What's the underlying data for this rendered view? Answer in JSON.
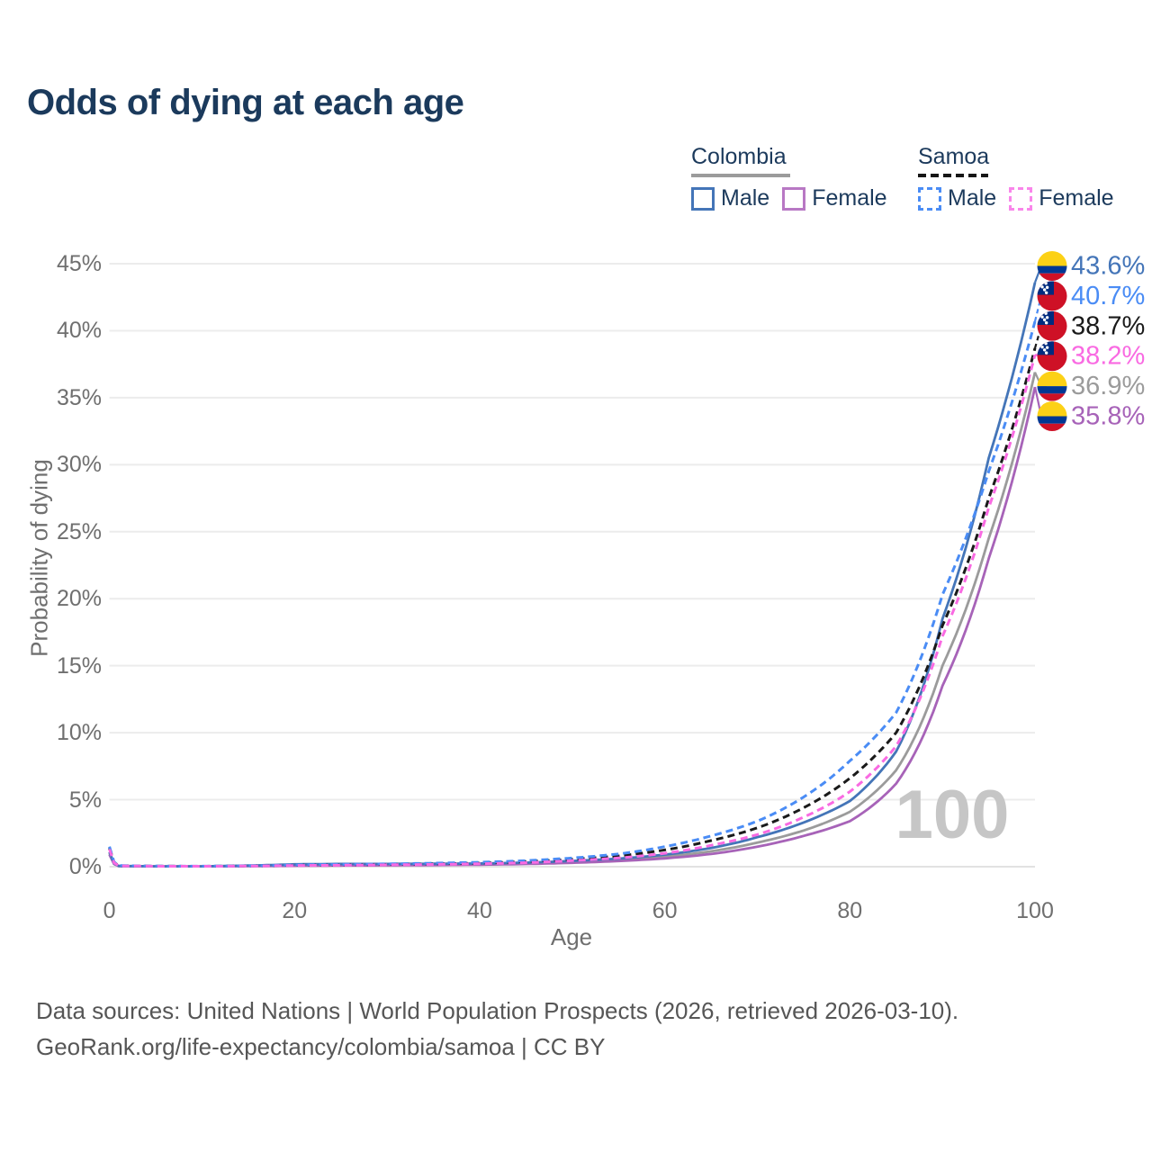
{
  "title": "Odds of dying at each age",
  "legend": {
    "groups": [
      {
        "name": "Colombia",
        "line_style": "solid",
        "underline_color": "#9b9b9b",
        "items": [
          {
            "label": "Male",
            "color": "#4475b8"
          },
          {
            "label": "Female",
            "color": "#b878c4"
          }
        ]
      },
      {
        "name": "Samoa",
        "line_style": "dashed",
        "underline_color": "#161616",
        "items": [
          {
            "label": "Male",
            "color": "#4a8cf5"
          },
          {
            "label": "Female",
            "color": "#f986ea"
          }
        ]
      }
    ]
  },
  "chart_data": {
    "type": "line",
    "title": "Odds of dying at each age",
    "xlabel": "Age",
    "ylabel": "Probability of dying",
    "xlim": [
      0,
      100
    ],
    "ylim": [
      0,
      45
    ],
    "x_ticks": [
      0,
      20,
      40,
      60,
      80,
      100
    ],
    "y_ticks": [
      0,
      5,
      10,
      15,
      20,
      25,
      30,
      35,
      40,
      45
    ],
    "y_tick_suffix": "%",
    "grid": "horizontal",
    "legend_position": "top-right",
    "watermark": "100",
    "ages": [
      0,
      1,
      5,
      10,
      15,
      20,
      25,
      30,
      35,
      40,
      45,
      50,
      55,
      60,
      65,
      70,
      75,
      80,
      85,
      90,
      95,
      100
    ],
    "series": [
      {
        "id": "colombia-combined",
        "name": "Colombia",
        "color": "#9b9b9b",
        "dash": "solid",
        "values": [
          1.0,
          0.05,
          0.028,
          0.026,
          0.07,
          0.13,
          0.15,
          0.16,
          0.17,
          0.19,
          0.25,
          0.36,
          0.5,
          0.75,
          1.15,
          1.8,
          2.7,
          4.1,
          7.2,
          15.0,
          24.5,
          36.9
        ]
      },
      {
        "id": "colombia-female",
        "name": "Colombia Female",
        "color": "#a763b8",
        "dash": "solid",
        "values": [
          0.9,
          0.045,
          0.025,
          0.024,
          0.04,
          0.07,
          0.09,
          0.1,
          0.12,
          0.15,
          0.2,
          0.29,
          0.42,
          0.62,
          0.95,
          1.5,
          2.3,
          3.4,
          6.2,
          13.5,
          23.0,
          35.8
        ]
      },
      {
        "id": "colombia-male",
        "name": "Colombia Male",
        "color": "#4475b8",
        "dash": "solid",
        "values": [
          1.1,
          0.055,
          0.03,
          0.03,
          0.09,
          0.18,
          0.21,
          0.21,
          0.22,
          0.24,
          0.3,
          0.43,
          0.6,
          0.9,
          1.4,
          2.2,
          3.3,
          4.9,
          8.6,
          18.5,
          30.5,
          43.6
        ]
      },
      {
        "id": "samoa-combined",
        "name": "Samoa",
        "color": "#1a1a1a",
        "dash": "dashed",
        "values": [
          1.4,
          0.075,
          0.04,
          0.035,
          0.06,
          0.11,
          0.14,
          0.17,
          0.21,
          0.27,
          0.38,
          0.55,
          0.8,
          1.25,
          1.95,
          2.9,
          4.4,
          6.6,
          10.0,
          18.0,
          27.5,
          38.7
        ]
      },
      {
        "id": "samoa-male",
        "name": "Samoa Male",
        "color": "#4a8cf5",
        "dash": "dashed",
        "values": [
          1.5,
          0.085,
          0.045,
          0.04,
          0.07,
          0.13,
          0.17,
          0.21,
          0.26,
          0.33,
          0.45,
          0.65,
          0.95,
          1.5,
          2.3,
          3.4,
          5.2,
          7.9,
          11.5,
          20.3,
          29.5,
          40.7
        ]
      },
      {
        "id": "samoa-female",
        "name": "Samoa Female",
        "color": "#f96ae2",
        "dash": "dashed",
        "values": [
          1.3,
          0.065,
          0.035,
          0.03,
          0.05,
          0.09,
          0.11,
          0.14,
          0.17,
          0.22,
          0.3,
          0.45,
          0.65,
          1.0,
          1.6,
          2.4,
          3.7,
          5.6,
          9.0,
          17.2,
          26.8,
          38.2
        ]
      }
    ],
    "end_labels": [
      {
        "series": "colombia-male",
        "value": "43.6%",
        "flag": "colombia",
        "color": "#4475b8"
      },
      {
        "series": "samoa-male",
        "value": "40.7%",
        "flag": "samoa",
        "color": "#4a8cf5"
      },
      {
        "series": "samoa-combined",
        "value": "38.7%",
        "flag": "samoa",
        "color": "#1a1a1a"
      },
      {
        "series": "samoa-female",
        "value": "38.2%",
        "flag": "samoa",
        "color": "#f96ae2"
      },
      {
        "series": "colombia-combined",
        "value": "36.9%",
        "flag": "colombia",
        "color": "#9b9b9b"
      },
      {
        "series": "colombia-female",
        "value": "35.8%",
        "flag": "colombia",
        "color": "#a763b8"
      }
    ]
  },
  "flags": {
    "colombia": {
      "yellow": "#FCD116",
      "blue": "#003893",
      "red": "#CE1126"
    },
    "samoa": {
      "red": "#CE1126",
      "blue": "#002B7F",
      "star": "#ffffff"
    }
  },
  "footer": {
    "line1": "Data sources: United Nations | World Population Prospects (2026, retrieved 2026-03-10).",
    "line2": "GeoRank.org/life-expectancy/colombia/samoa | CC BY"
  }
}
